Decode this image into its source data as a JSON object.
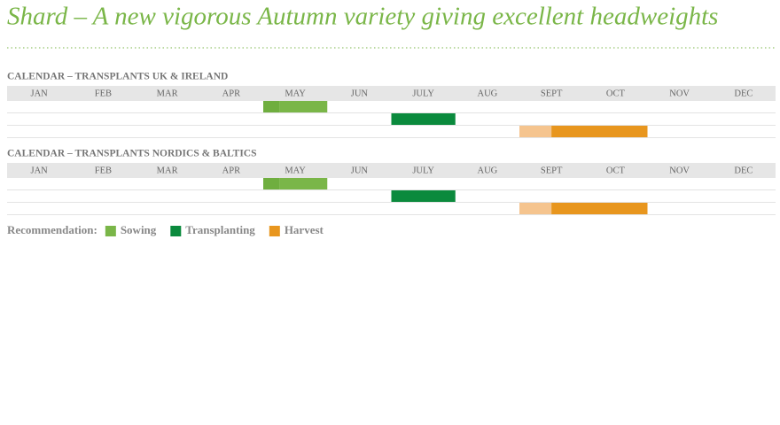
{
  "title": "Shard – A new vigorous Autumn variety giving excellent headweights",
  "calendars": [
    {
      "heading": "CALENDAR – TRANSPLANTS UK & IRELAND",
      "months": [
        "JAN",
        "FEB",
        "MAR",
        "APR",
        "MAY",
        "JUN",
        "JULY",
        "AUG",
        "SEPT",
        "OCT",
        "NOV",
        "DEC"
      ],
      "rows": [
        [
          {
            "start": 4,
            "end": 4.25,
            "color": "#6fae3f"
          },
          {
            "start": 4.25,
            "end": 5,
            "color": "#7ab648"
          }
        ],
        [
          {
            "start": 6,
            "end": 7,
            "color": "#0b8a3d"
          }
        ],
        [
          {
            "start": 8,
            "end": 8.5,
            "color": "#f5c48e"
          },
          {
            "start": 8.5,
            "end": 10,
            "color": "#e8961e"
          }
        ]
      ]
    },
    {
      "heading": "CALENDAR – TRANSPLANTS NORDICS & BALTICS",
      "months": [
        "JAN",
        "FEB",
        "MAR",
        "APR",
        "MAY",
        "JUN",
        "JULY",
        "AUG",
        "SEPT",
        "OCT",
        "NOV",
        "DEC"
      ],
      "rows": [
        [
          {
            "start": 4,
            "end": 4.25,
            "color": "#6fae3f"
          },
          {
            "start": 4.25,
            "end": 5,
            "color": "#7ab648"
          }
        ],
        [
          {
            "start": 6,
            "end": 7,
            "color": "#0b8a3d"
          }
        ],
        [
          {
            "start": 8,
            "end": 8.5,
            "color": "#f5c48e"
          },
          {
            "start": 8.5,
            "end": 10,
            "color": "#e8961e"
          }
        ]
      ]
    }
  ],
  "legend": {
    "label": "Recommendation:",
    "items": [
      {
        "name": "Sowing",
        "color": "#7ab648"
      },
      {
        "name": "Transplanting",
        "color": "#0b8a3d"
      },
      {
        "name": "Harvest",
        "color": "#e8961e"
      }
    ]
  }
}
